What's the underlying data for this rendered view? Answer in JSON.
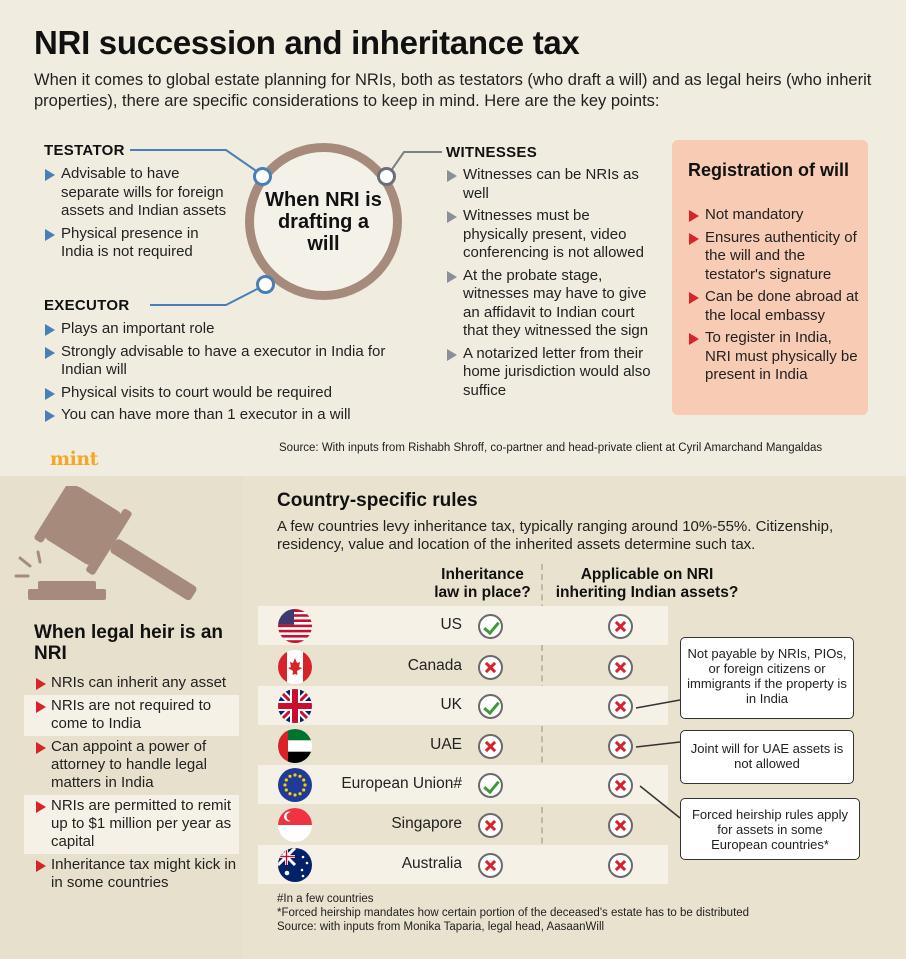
{
  "title": "NRI succession and inheritance tax",
  "intro": "When it comes to global estate planning for NRIs, both as testators (who draft a will) and as legal heirs (who inherit properties), there are specific considerations to keep in mind. Here are the key points:",
  "center_label": "When NRI is drafting a will",
  "testator": {
    "heading": "TESTATOR",
    "items": [
      "Advisable to have separate wills for foreign assets and Indian assets",
      "Physical presence in India is not required"
    ]
  },
  "executor": {
    "heading": "EXECUTOR",
    "items": [
      "Plays an important role",
      "Strongly advisable to have a executor in India for Indian will",
      "Physical visits to court would be required",
      "You can have more than 1 executor in a will"
    ]
  },
  "witnesses": {
    "heading": "WITNESSES",
    "items": [
      "Witnesses can be NRIs as well",
      "Witnesses must be physically present, video conferencing is not allowed",
      "At the probate stage, witnesses may have to give an affidavit to Indian court that they witnessed the sign",
      "A notarized letter from their home jurisdiction would also suffice"
    ]
  },
  "registration": {
    "heading": "Registration of will",
    "items": [
      "Not mandatory",
      "Ensures authenticity of the will and the testator's signature",
      "Can be done abroad at the local embassy",
      "To register in India, NRI must physically be present in India"
    ]
  },
  "source_top": "Source: With inputs from Rishabh Shroff, co-partner and head-private client at Cyril Amarchand Mangaldas",
  "brand": "mint",
  "legal_heir": {
    "heading": "When legal heir is an NRI",
    "items": [
      "NRIs can inherit any asset",
      "NRIs are not required to come to India",
      "Can appoint a power of attorney to handle legal matters in India",
      "NRIs are permitted to remit up to $1 million per year as capital",
      "Inheritance tax might kick in in some countries"
    ]
  },
  "country_rules": {
    "heading": "Country-specific rules",
    "description": "A few countries levy inheritance tax, typically ranging around 10%-55%. Citizenship, residency, value and location of the inherited assets determine such tax.",
    "col1": "Inheritance law in place?",
    "col2": "Applicable on NRI inheriting Indian assets?",
    "rows": [
      {
        "country": "US",
        "flag": "us-flag",
        "law": true,
        "nri": false
      },
      {
        "country": "Canada",
        "flag": "canada-flag",
        "law": false,
        "nri": false
      },
      {
        "country": "UK",
        "flag": "uk-flag",
        "law": true,
        "nri": false
      },
      {
        "country": "UAE",
        "flag": "uae-flag",
        "law": false,
        "nri": false
      },
      {
        "country": "European Union#",
        "flag": "eu-flag",
        "law": true,
        "nri": false
      },
      {
        "country": "Singapore",
        "flag": "singapore-flag",
        "law": false,
        "nri": false
      },
      {
        "country": "Australia",
        "flag": "australia-flag",
        "law": false,
        "nri": false
      }
    ],
    "notes": {
      "uk": "Not payable by NRIs, PIOs, or foreign citizens or immigrants if the property is in India",
      "uae": "Joint will for UAE assets is not allowed",
      "eu": "Forced heirship rules apply for assets in some European countries*"
    }
  },
  "footnotes": {
    "hash": "#In a few countries",
    "star": "*Forced heirship mandates how certain portion of the deceased's estate has to be distributed",
    "source": "Source: with inputs from Monika Taparia, legal head, AasaanWill"
  },
  "colors": {
    "accent_blue": "#4a7fb5",
    "accent_red": "#d8232a",
    "tick_green": "#3f9a3a",
    "circle_border": "#a68a7c",
    "reg_box": "#f8cbb5",
    "brand": "#f5a623"
  }
}
